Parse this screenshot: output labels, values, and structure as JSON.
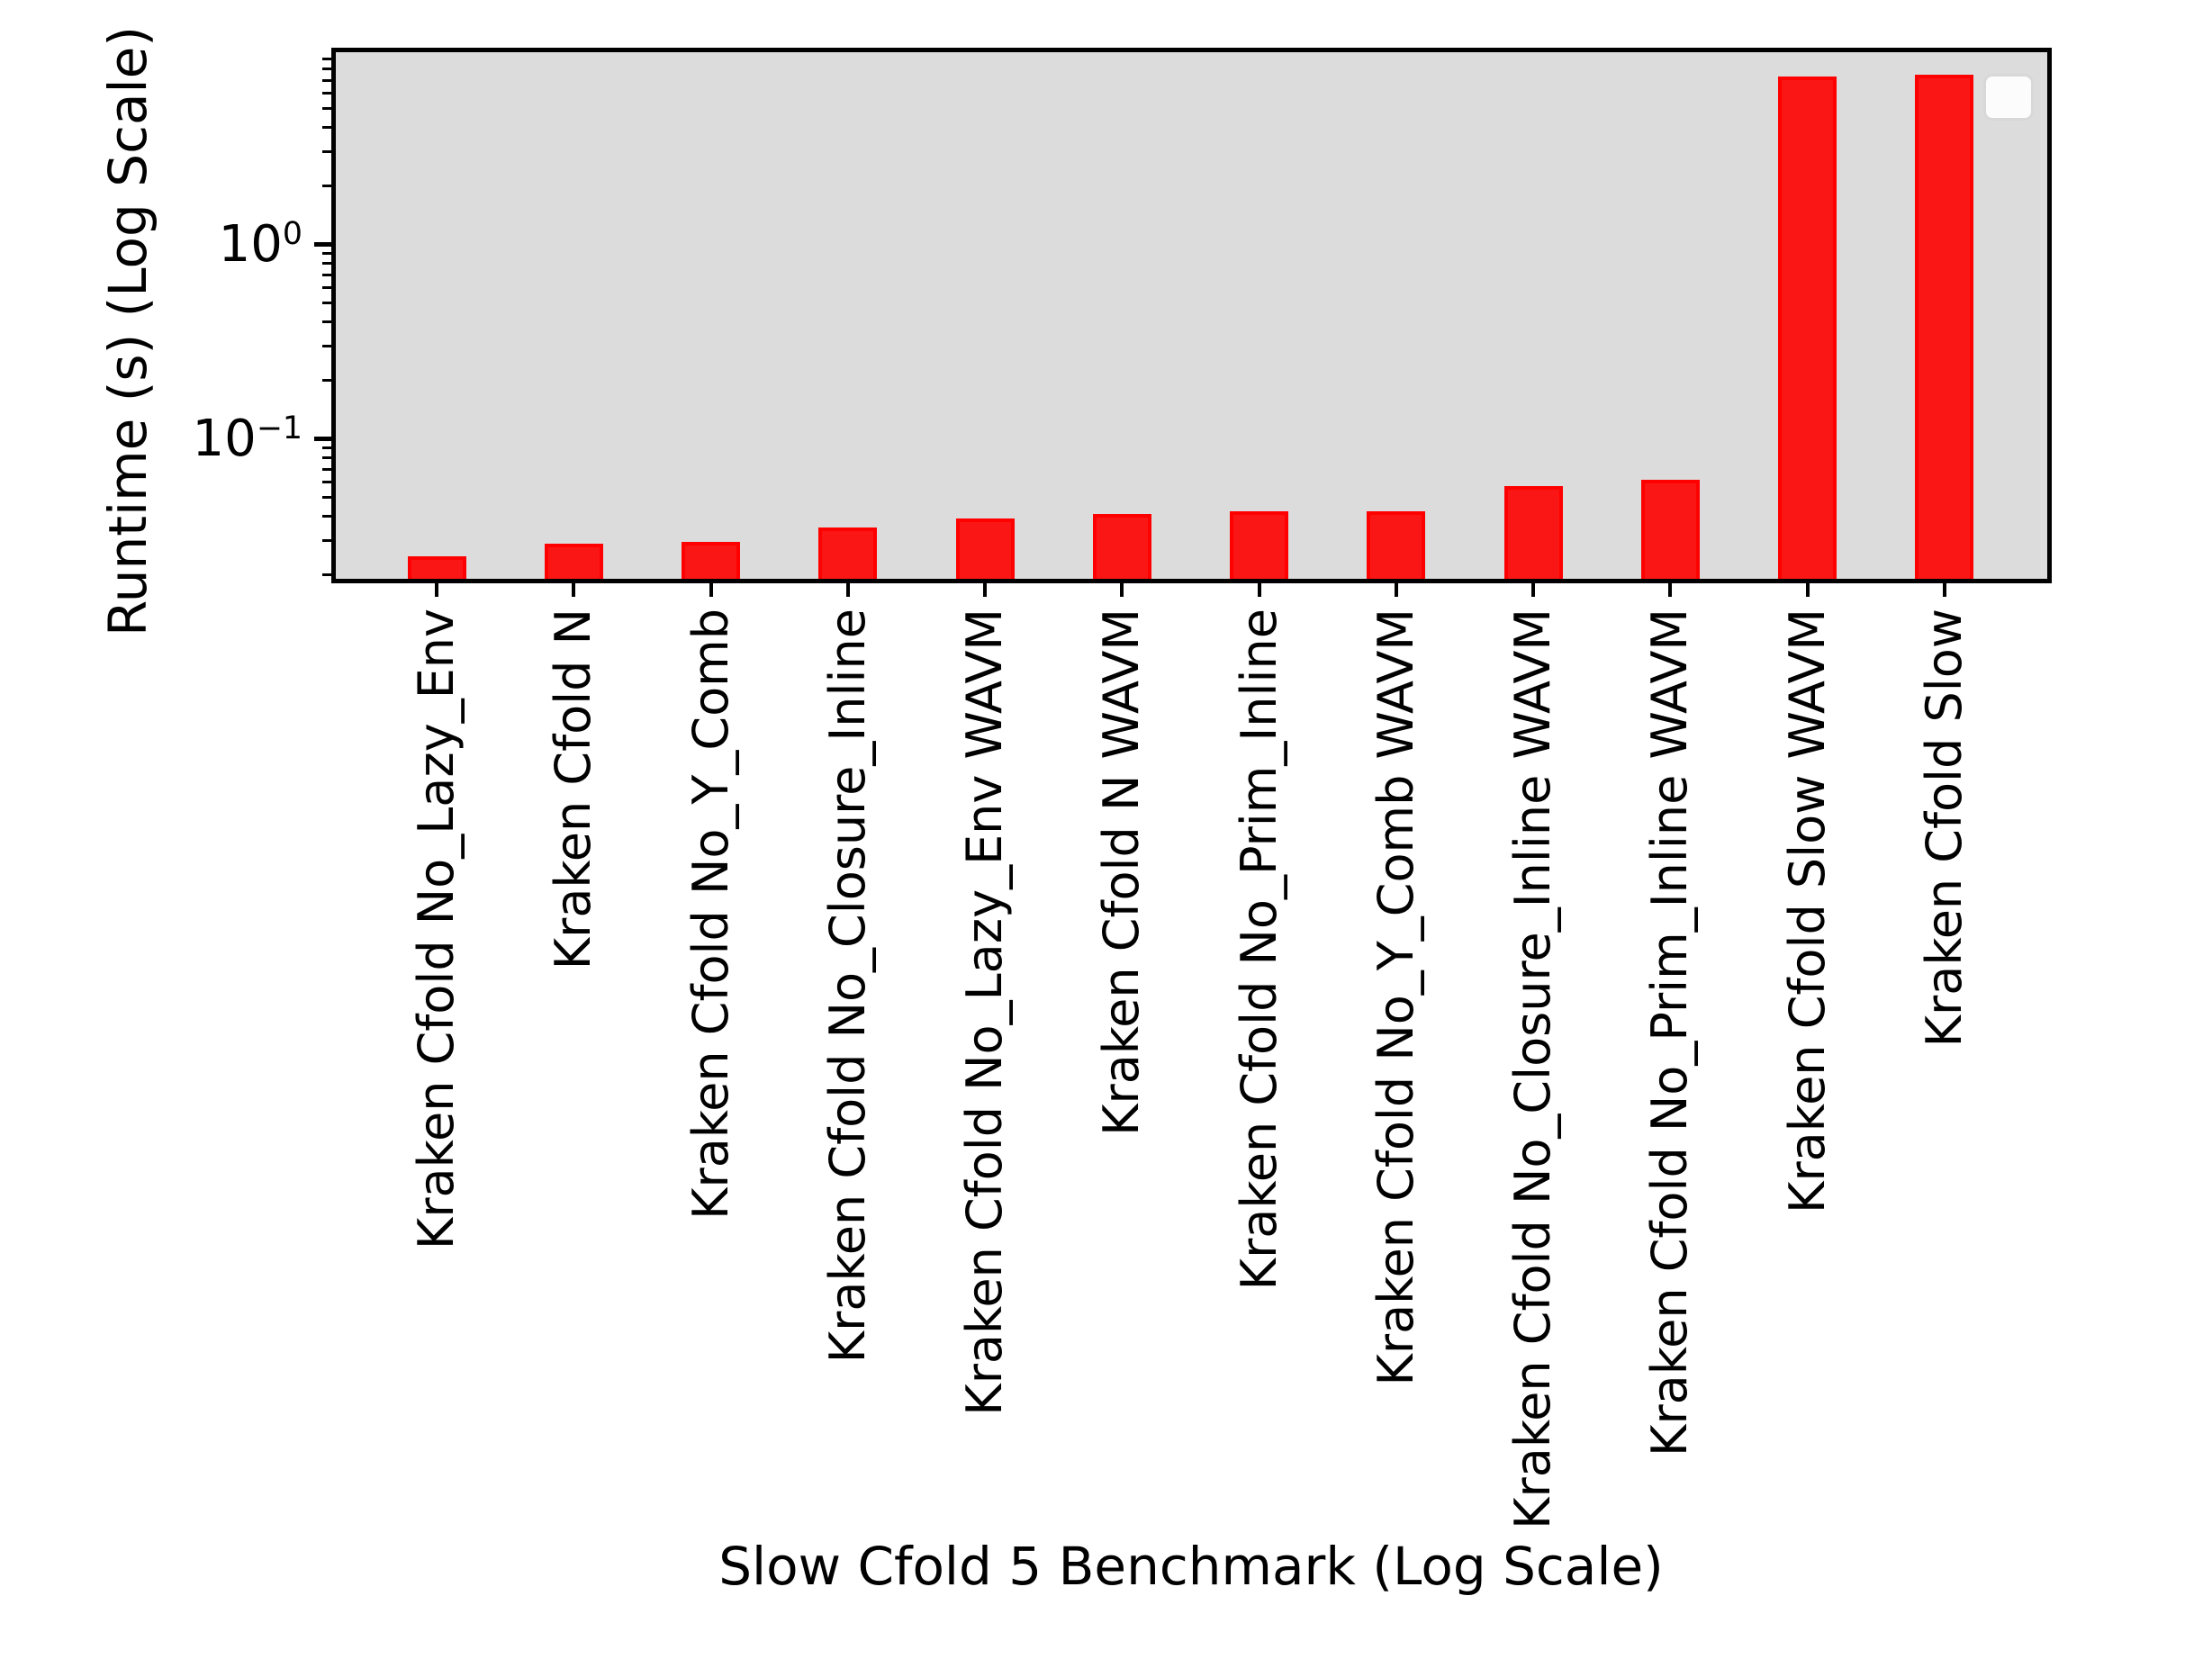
{
  "figure": {
    "background_color": "#ffffff",
    "plot_background_color": "#dcdcdc",
    "axis_color": "#000000",
    "bar_fill_color": "#fb1616",
    "bar_edge_color": "#ff0000",
    "legend": {
      "present": true,
      "entries": [],
      "position": "upper right"
    }
  },
  "chart_data": {
    "type": "bar",
    "title": "",
    "xlabel": "Slow Cfold 5 Benchmark (Log Scale)",
    "ylabel": "Runtime (s) (Log Scale)",
    "yscale": "log",
    "ylim": [
      0.0187,
      10.1
    ],
    "grid": false,
    "legend_position": "upper right",
    "categories": [
      "Kraken Cfold No_Lazy_Env",
      "Kraken Cfold N",
      "Kraken Cfold No_Y_Comb",
      "Kraken Cfold No_Closure_Inline",
      "Kraken Cfold No_Lazy_Env WAVM",
      "Kraken Cfold N WAVM",
      "Kraken Cfold No_Prim_Inline",
      "Kraken Cfold No_Y_Comb WAVM",
      "Kraken Cfold No_Closure_Inline WAVM",
      "Kraken Cfold No_Prim_Inline WAVM",
      "Kraken Cfold Slow WAVM",
      "Kraken Cfold Slow"
    ],
    "values": [
      0.025,
      0.029,
      0.0296,
      0.035,
      0.039,
      0.041,
      0.0425,
      0.0425,
      0.057,
      0.0615,
      7.3,
      7.5
    ],
    "y_major_ticks": [
      {
        "value": 1,
        "base": "10",
        "exp": "0"
      },
      {
        "value": 0.1,
        "base": "10",
        "exp": "−1"
      }
    ],
    "y_minor_tick_mantissas": [
      2,
      3,
      4,
      5,
      6,
      7,
      8,
      9
    ],
    "y_minor_tick_decades": [
      0.01,
      0.1,
      1
    ]
  }
}
